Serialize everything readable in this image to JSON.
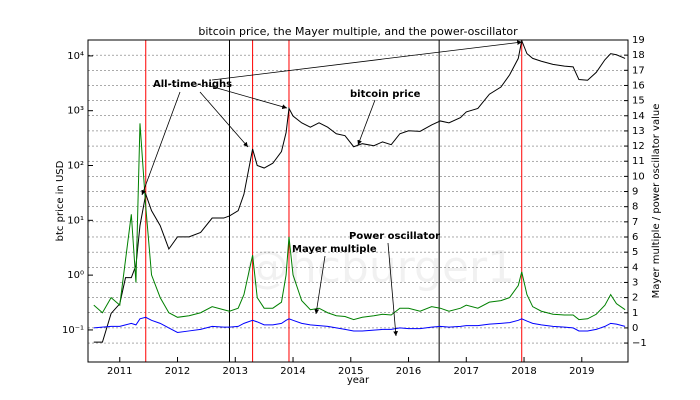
{
  "chart_data": {
    "type": "line",
    "title": "bitcoin price, the Mayer multiple, and the power-oscillator",
    "xlabel": "year",
    "ylabel": "btc price in USD",
    "y2label": "Mayer multiple / power oscillator value",
    "annotation": "All-time-highs",
    "watermark": "@hcburger1",
    "yscale": "log",
    "grid": "y2",
    "xlim": [
      2010.45,
      2019.8
    ],
    "xticks": [
      2011,
      2012,
      2013,
      2014,
      2015,
      2016,
      2017,
      2018,
      2019
    ],
    "ylim": [
      0.026,
      19500
    ],
    "yticks": [
      {
        "value": 0.1,
        "label": "10⁻¹"
      },
      {
        "value": 1,
        "label": "10⁰"
      },
      {
        "value": 10,
        "label": "10¹"
      },
      {
        "value": 100,
        "label": "10²"
      },
      {
        "value": 1000,
        "label": "10³"
      },
      {
        "value": 10000,
        "label": "10⁴"
      }
    ],
    "y2lim": [
      -2.25,
      19.0
    ],
    "y2ticks": [
      {
        "value": -1,
        "label": "−1"
      },
      0,
      1,
      2,
      3,
      4,
      5,
      6,
      7,
      8,
      9,
      10,
      11,
      12,
      13,
      14,
      15,
      16,
      17,
      18,
      19
    ],
    "vlines": [
      {
        "x": 2011.45,
        "color": "#ff0000"
      },
      {
        "x": 2012.9,
        "color": "#000000"
      },
      {
        "x": 2013.3,
        "color": "#ff0000"
      },
      {
        "x": 2013.93,
        "color": "#ff0000"
      },
      {
        "x": 2016.53,
        "color": "#000000"
      },
      {
        "x": 2017.96,
        "color": "#ff0000"
      }
    ],
    "x": [
      2010.55,
      2010.7,
      2010.85,
      2011.0,
      2011.1,
      2011.2,
      2011.28,
      2011.35,
      2011.45,
      2011.55,
      2011.7,
      2011.85,
      2012.0,
      2012.2,
      2012.4,
      2012.6,
      2012.8,
      2012.9,
      2013.05,
      2013.15,
      2013.3,
      2013.38,
      2013.5,
      2013.65,
      2013.8,
      2013.88,
      2013.93,
      2014.0,
      2014.15,
      2014.3,
      2014.45,
      2014.6,
      2014.75,
      2014.9,
      2015.05,
      2015.2,
      2015.4,
      2015.55,
      2015.7,
      2015.85,
      2016.0,
      2016.2,
      2016.4,
      2016.55,
      2016.7,
      2016.9,
      2017.0,
      2017.2,
      2017.4,
      2017.6,
      2017.75,
      2017.9,
      2017.96,
      2018.05,
      2018.15,
      2018.3,
      2018.5,
      2018.7,
      2018.85,
      2018.95,
      2019.1,
      2019.25,
      2019.4,
      2019.5,
      2019.6,
      2019.75
    ],
    "series": [
      {
        "name": "bitcoin price",
        "color": "#000000",
        "axis": "y",
        "values": [
          0.06,
          0.06,
          0.2,
          0.3,
          0.9,
          0.9,
          1.5,
          8,
          30,
          15,
          8,
          3,
          5,
          5,
          6,
          11,
          11,
          12,
          15,
          30,
          200,
          100,
          90,
          110,
          180,
          400,
          1100,
          800,
          600,
          500,
          600,
          500,
          380,
          350,
          220,
          250,
          230,
          270,
          240,
          380,
          430,
          420,
          550,
          650,
          600,
          750,
          950,
          1100,
          2000,
          2700,
          4500,
          9000,
          19000,
          11000,
          9000,
          8000,
          7000,
          6500,
          6300,
          3700,
          3600,
          5000,
          8500,
          11000,
          10500,
          9000
        ]
      },
      {
        "name": "Mayer multiple",
        "color": "#008000",
        "axis": "y2",
        "values": [
          1.5,
          1.0,
          2.0,
          1.5,
          4.5,
          7.5,
          3.0,
          13.5,
          8,
          3.5,
          2.0,
          1.0,
          0.7,
          0.8,
          1.0,
          1.4,
          1.2,
          1.1,
          1.3,
          2.2,
          4.8,
          2.0,
          1.3,
          1.3,
          1.7,
          3.5,
          6.0,
          3.5,
          1.8,
          1.2,
          1.3,
          1.0,
          0.8,
          0.75,
          0.55,
          0.7,
          0.8,
          0.9,
          0.85,
          1.3,
          1.3,
          1.1,
          1.4,
          1.3,
          1.1,
          1.3,
          1.5,
          1.3,
          1.7,
          1.8,
          2.0,
          2.8,
          3.7,
          2.2,
          1.4,
          1.1,
          0.9,
          0.85,
          0.85,
          0.55,
          0.6,
          0.9,
          1.5,
          2.2,
          1.6,
          1.2
        ]
      },
      {
        "name": "Power oscillator",
        "color": "#0000ff",
        "axis": "y2",
        "values": [
          0.0,
          0.05,
          0.1,
          0.1,
          0.2,
          0.3,
          0.2,
          0.6,
          0.7,
          0.5,
          0.3,
          0.0,
          -0.3,
          -0.2,
          -0.1,
          0.1,
          0.05,
          0.05,
          0.1,
          0.3,
          0.5,
          0.4,
          0.2,
          0.2,
          0.3,
          0.5,
          0.6,
          0.5,
          0.3,
          0.2,
          0.15,
          0.1,
          0.0,
          -0.1,
          -0.2,
          -0.2,
          -0.15,
          -0.1,
          -0.1,
          0.0,
          -0.05,
          -0.05,
          0.05,
          0.1,
          0.05,
          0.1,
          0.15,
          0.15,
          0.25,
          0.3,
          0.35,
          0.5,
          0.6,
          0.45,
          0.3,
          0.2,
          0.1,
          0.05,
          0.0,
          -0.2,
          -0.2,
          -0.1,
          0.1,
          0.3,
          0.25,
          0.1
        ]
      }
    ]
  }
}
